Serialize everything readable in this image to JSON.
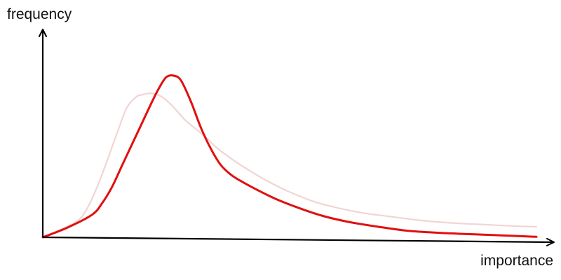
{
  "chart_data": {
    "type": "line",
    "title": "",
    "xlabel": "importance",
    "ylabel": "frequency",
    "xlim": [
      0,
      100
    ],
    "ylim": [
      0,
      100
    ],
    "grid": false,
    "legend": "none",
    "series": [
      {
        "color": "#f2d4d4",
        "emphasis": "faded",
        "x": [
          0,
          3,
          7,
          9,
          11,
          13,
          15,
          17,
          19,
          20,
          21.5,
          23,
          24.5,
          26,
          27.5,
          29,
          31,
          33,
          35,
          38,
          42,
          46,
          50,
          55,
          60,
          65,
          70,
          75,
          80,
          85,
          90,
          95,
          100
        ],
        "y": [
          0,
          4,
          10,
          18,
          31,
          47,
          64,
          80,
          87,
          88,
          89,
          88.5,
          86,
          82,
          77,
          72,
          67,
          62,
          56,
          49,
          41,
          34,
          28,
          22,
          18,
          15,
          13,
          11,
          9.5,
          8.5,
          7.8,
          7,
          6.5
        ]
      },
      {
        "color": "#e01010",
        "emphasis": "highlighted",
        "x": [
          0,
          5,
          10,
          12,
          14,
          16,
          18,
          20,
          22,
          23.5,
          25,
          26.5,
          28,
          30,
          32,
          34,
          36,
          38,
          40,
          43,
          47,
          52,
          57,
          62,
          68,
          74,
          80,
          86,
          92,
          100
        ],
        "y": [
          0,
          6,
          14,
          21,
          31,
          44,
          57,
          70,
          83,
          92,
          99,
          100,
          97,
          84,
          68,
          55,
          45,
          39,
          35,
          30,
          24,
          18,
          13,
          9.5,
          6.5,
          4,
          2.8,
          2,
          1.3,
          0.3
        ]
      }
    ]
  }
}
